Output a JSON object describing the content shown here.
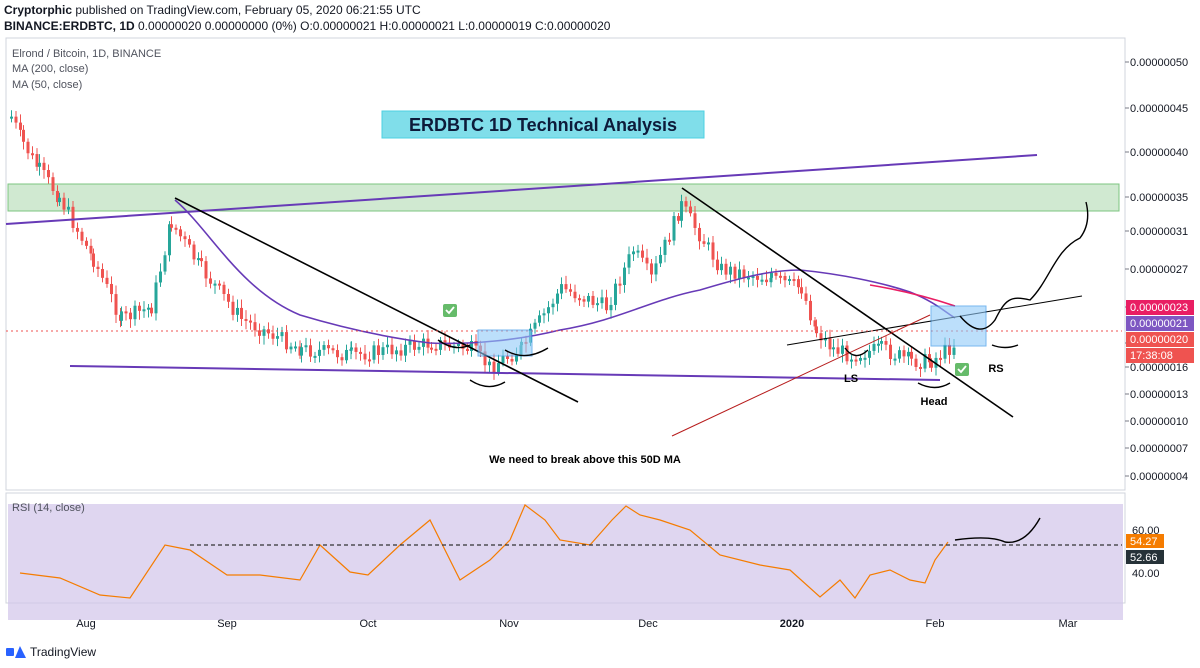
{
  "header": {
    "line1_user": "Cryptorphic",
    "line1_rest": " published on TradingView.com, February 05, 2020 06:21:55 UTC",
    "line2_symbol": "BINANCE:ERDBTC, 1D",
    "line2_rest": " 0.00000020 0.00000000 (0%) O:0.00000021 H:0.00000021 L:0.00000019 C:0.00000020"
  },
  "legend": {
    "symbol": "Elrond / Bitcoin, 1D, BINANCE",
    "ma200": "MA (200, close)",
    "ma50": "MA (50, close)"
  },
  "annotations": {
    "title": "ERDBTC 1D Technical Analysis",
    "note": "We need to break above this 50D MA",
    "ls": "LS",
    "head": "Head",
    "rs": "RS"
  },
  "price_tags": {
    "ma200": "0.00000023",
    "ma50": "0.00000021",
    "last": "0.00000020",
    "countdown": "17:38:08"
  },
  "rsi": {
    "label": "RSI (14, close)",
    "value_tag": "54.27",
    "level_tag": "52.66",
    "ticks": [
      "60.00",
      "40.00"
    ]
  },
  "footer": {
    "brand": "TradingView"
  },
  "colors": {
    "bull": "#26a69a",
    "bear": "#ef5350",
    "ma50": "#673ab7",
    "ma200": "#e91e63",
    "rsi_line": "#f57c00",
    "rsi_band": "#d1c4e9",
    "zone": "#c8e6c9"
  },
  "chart_data": {
    "type": "candlestick",
    "title": "ERDBTC 1D Technical Analysis",
    "y_axis_ticks": [
      "0.00000050",
      "0.00000045",
      "0.00000040",
      "0.00000035",
      "0.00000031",
      "0.00000027",
      "0.00000023",
      "0.00000020",
      "0.00000016",
      "0.00000013",
      "0.00000010",
      "0.00000007",
      "0.00000004"
    ],
    "x_axis_ticks": [
      "Aug",
      "Sep",
      "Oct",
      "Nov",
      "Dec",
      "2020",
      "Feb",
      "Mar"
    ],
    "close_series": {
      "name": "ERDBTC",
      "x": [
        "Jul 16",
        "Jul 20",
        "Jul 25",
        "Jul 30",
        "Aug 5",
        "Aug 10",
        "Aug 15",
        "Aug 19",
        "Aug 25",
        "Sep 1",
        "Sep 10",
        "Sep 20",
        "Oct 1",
        "Oct 10",
        "Oct 20",
        "Oct 26",
        "Nov 1",
        "Nov 10",
        "Nov 20",
        "Nov 28",
        "Dec 5",
        "Dec 9",
        "Dec 15",
        "Dec 25",
        "Jan 1",
        "Jan 5",
        "Jan 10",
        "Jan 15",
        "Jan 20",
        "Jan 25",
        "Jan 29",
        "Feb 5"
      ],
      "values": [
        4.4e-07,
        4.1e-07,
        3.8e-07,
        3.5e-07,
        2.8e-07,
        2.2e-07,
        2.3e-07,
        3.2e-07,
        2.7e-07,
        2.2e-07,
        1.9e-07,
        1.8e-07,
        1.9e-07,
        2e-07,
        1.9e-07,
        1.6e-07,
        1.9e-07,
        2.5e-07,
        2.3e-07,
        2.9e-07,
        2.6e-07,
        3.4e-07,
        2.7e-07,
        2.6e-07,
        2.5e-07,
        2.1e-07,
        1.9e-07,
        1.8e-07,
        1.9e-07,
        1.7e-07,
        1.7e-07,
        2e-07
      ]
    },
    "rsi_series": {
      "name": "RSI (14, close)",
      "x": [
        "Jul 16",
        "Aug 1",
        "Aug 19",
        "Sep 10",
        "Oct 1",
        "Oct 15",
        "Oct 26",
        "Nov 5",
        "Nov 20",
        "Dec 5",
        "Dec 20",
        "Jan 10",
        "Jan 15",
        "Jan 25",
        "Feb 5"
      ],
      "values": [
        40,
        35,
        58,
        42,
        40,
        55,
        38,
        60,
        70,
        70,
        50,
        28,
        30,
        35,
        54.27
      ]
    }
  }
}
